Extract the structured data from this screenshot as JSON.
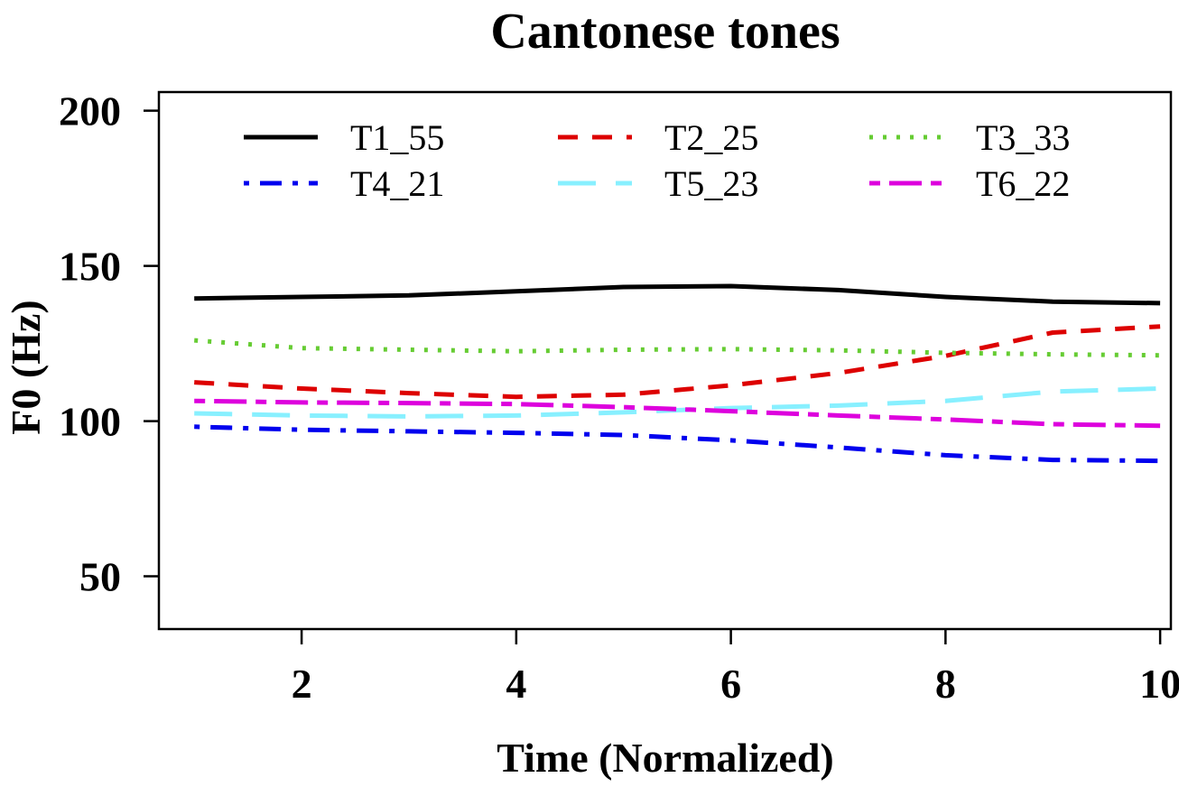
{
  "chart_data": {
    "type": "line",
    "title": "Cantonese tones",
    "xlabel": "Time (Normalized)",
    "ylabel": "F0 (Hz)",
    "xlim": [
      0.67,
      10.1
    ],
    "ylim": [
      33,
      206
    ],
    "xticks": [
      2,
      4,
      6,
      8,
      10
    ],
    "yticks": [
      50,
      100,
      150,
      200
    ],
    "x": [
      1,
      2,
      3,
      4,
      5,
      6,
      7,
      8,
      9,
      10
    ],
    "legend_position": "top",
    "series": [
      {
        "name": "T1_55",
        "color": "#000000",
        "dash": "solid",
        "values": [
          139.5,
          140.0,
          140.5,
          141.8,
          143.2,
          143.5,
          142.2,
          140.0,
          138.5,
          138.0
        ]
      },
      {
        "name": "T2_25",
        "color": "#dd0000",
        "dash": "dashed",
        "values": [
          112.5,
          110.5,
          109.0,
          107.8,
          108.5,
          111.5,
          115.5,
          121.0,
          128.5,
          130.5
        ]
      },
      {
        "name": "T3_33",
        "color": "#66cc33",
        "dash": "dotted",
        "values": [
          126.0,
          123.5,
          123.0,
          122.5,
          123.0,
          123.2,
          122.8,
          122.0,
          121.5,
          121.2
        ]
      },
      {
        "name": "T4_21",
        "color": "#0000ee",
        "dash": "dotdash",
        "values": [
          98.2,
          97.2,
          96.7,
          96.2,
          95.5,
          93.8,
          91.5,
          89.0,
          87.5,
          87.2
        ]
      },
      {
        "name": "T5_23",
        "color": "#88f0ff",
        "dash": "longdash",
        "values": [
          102.5,
          101.8,
          101.5,
          101.8,
          102.8,
          104.2,
          105.0,
          106.5,
          109.5,
          110.5
        ]
      },
      {
        "name": "T6_22",
        "color": "#dd00dd",
        "dash": "twodash",
        "values": [
          106.5,
          106.0,
          105.8,
          105.5,
          104.5,
          103.2,
          101.8,
          100.5,
          99.0,
          98.5
        ]
      }
    ]
  }
}
